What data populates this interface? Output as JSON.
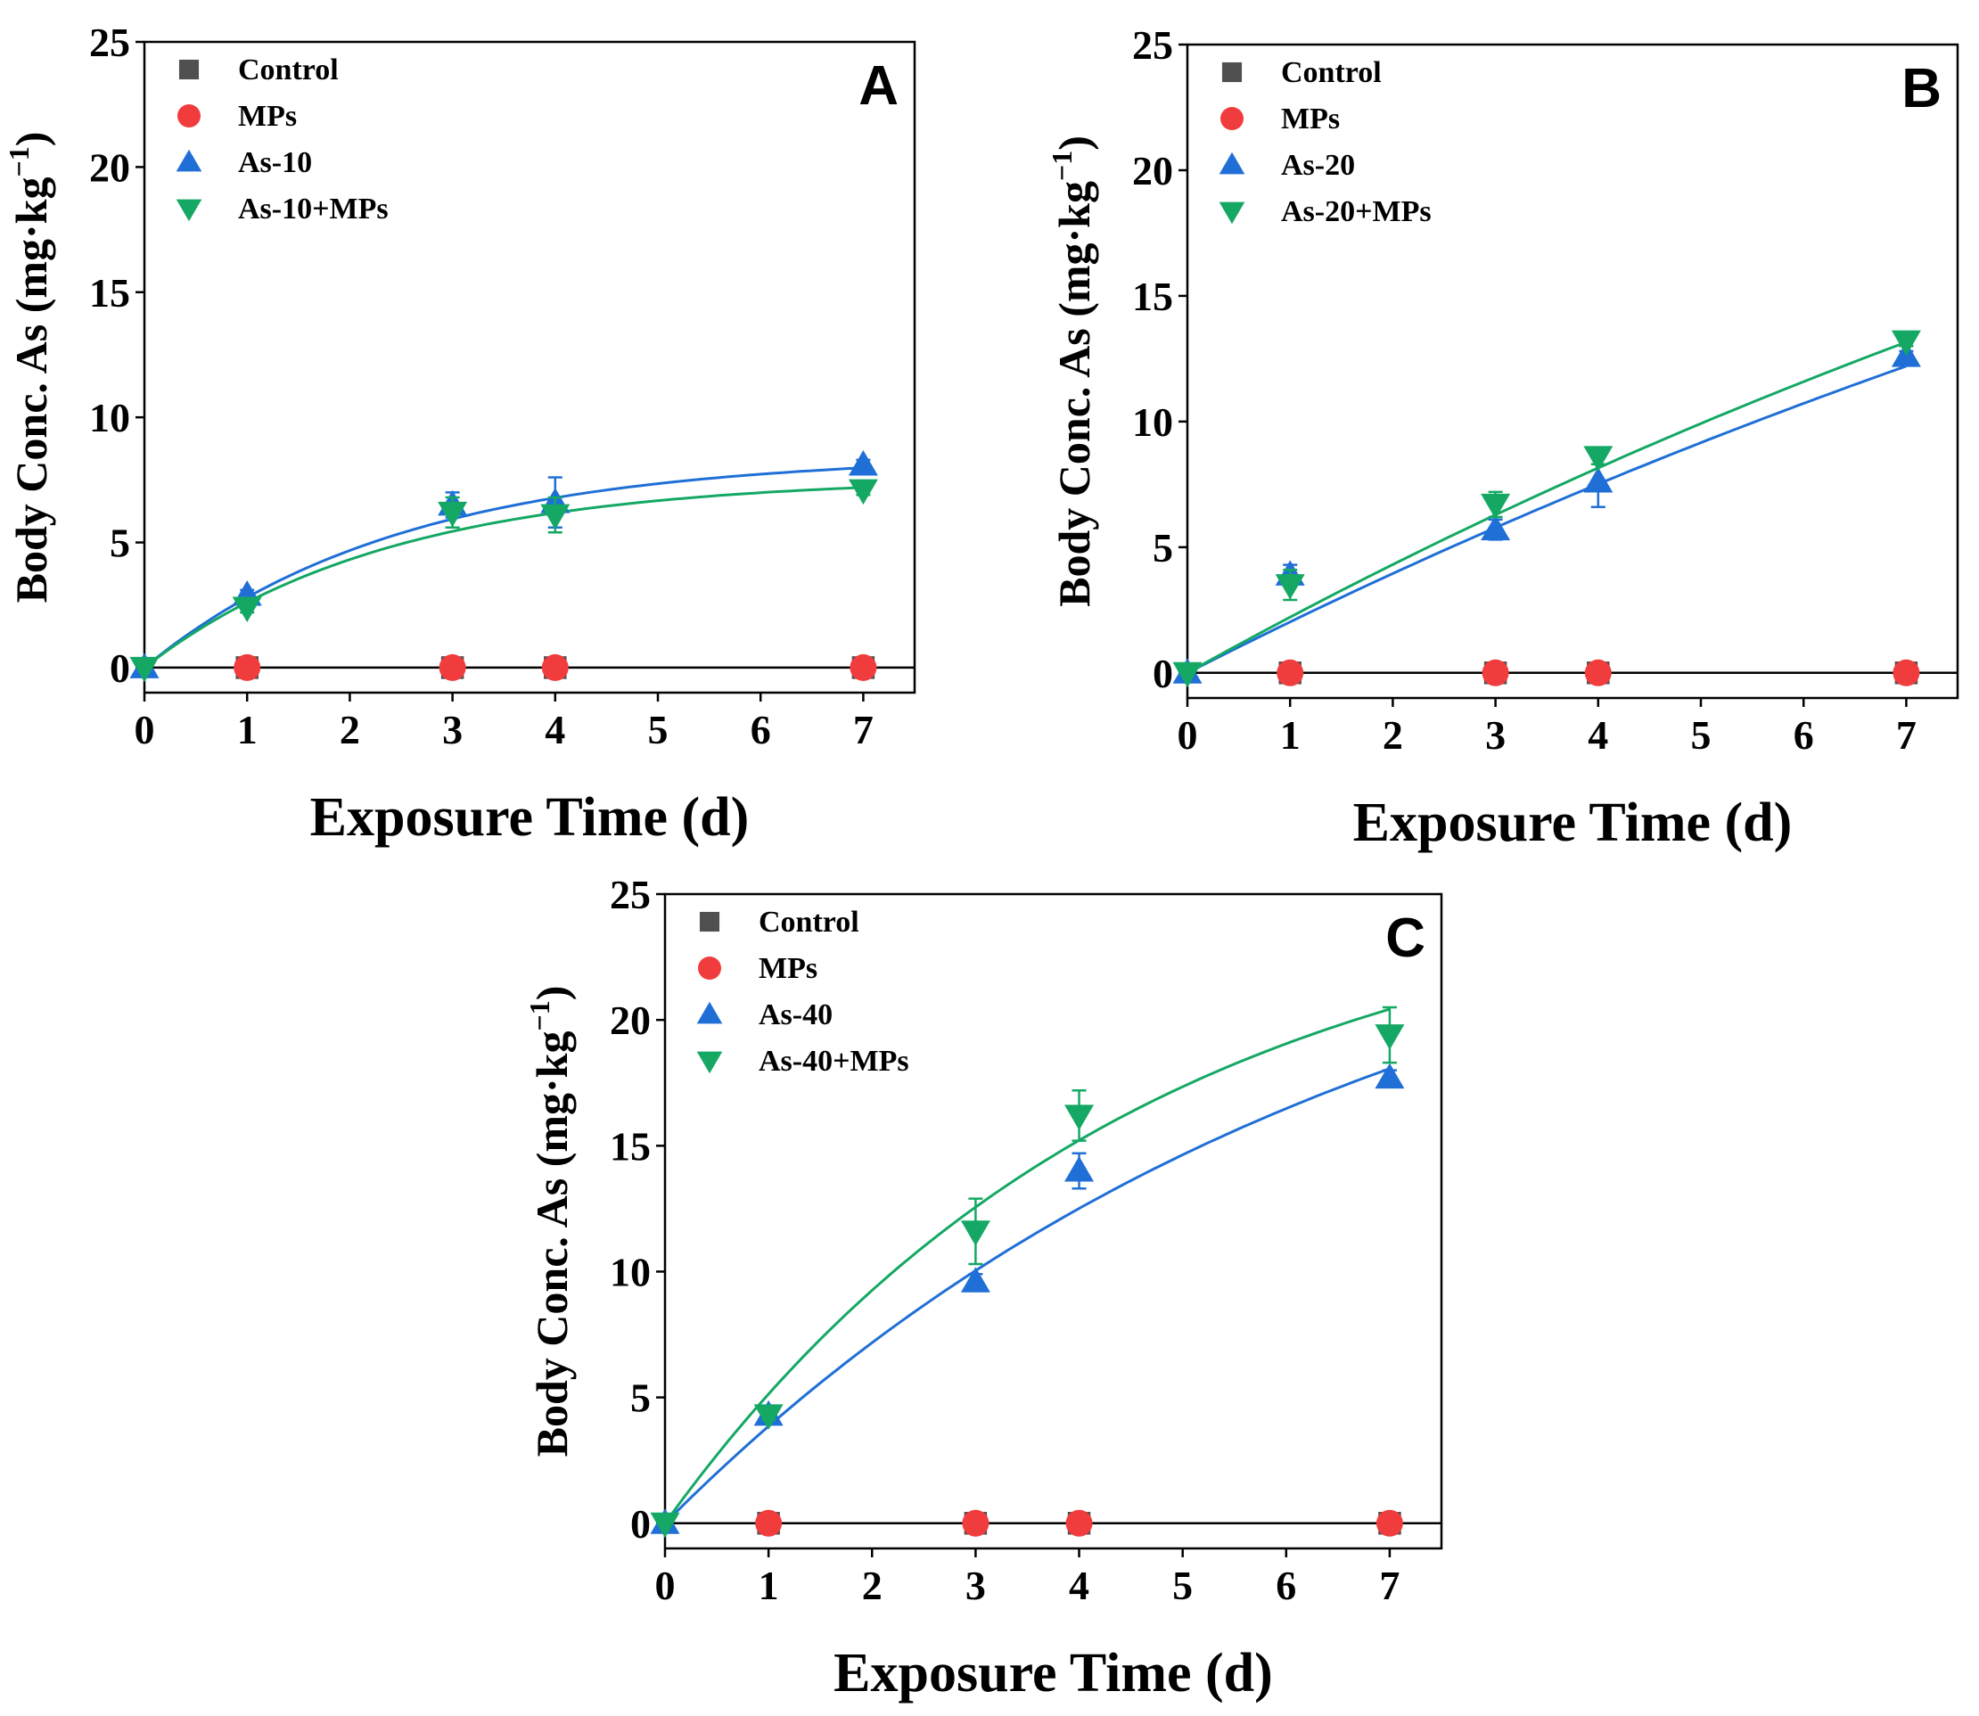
{
  "chart_data": [
    {
      "type": "scatter",
      "panel_label": "A",
      "xlabel": "Exposure Time (d)",
      "ylabel_main": "Body Conc. As (mg·kg",
      "ylabel_sup": "−1",
      "ylabel_close": ")",
      "xlim": [
        0,
        7.5
      ],
      "ylim": [
        -1,
        25
      ],
      "xticks": [
        "0",
        "1",
        "2",
        "3",
        "4",
        "5",
        "6",
        "7"
      ],
      "yticks": [
        "0",
        "5",
        "10",
        "15",
        "20",
        "25"
      ],
      "series": [
        {
          "name": "Control",
          "marker": "square",
          "color": "#505050",
          "x": [
            1,
            3,
            4,
            7
          ],
          "y": [
            0,
            0,
            0,
            0
          ]
        },
        {
          "name": "MPs",
          "marker": "circle",
          "color": "#f03c3c",
          "x": [
            1,
            3,
            4,
            7
          ],
          "y": [
            0,
            0,
            0,
            0
          ]
        },
        {
          "name": "As-10",
          "marker": "triangle-up",
          "color": "#1f6fd6",
          "x": [
            0,
            1,
            3,
            4,
            7
          ],
          "y": [
            0,
            2.9,
            6.5,
            6.6,
            8.1
          ],
          "err": [
            0,
            0.2,
            0.5,
            1.0,
            0.2
          ],
          "fit": {
            "a": 8.5,
            "k": 0.4
          }
        },
        {
          "name": "As-10+MPs",
          "marker": "triangle-down",
          "color": "#14a864",
          "x": [
            0,
            1,
            3,
            4,
            7
          ],
          "y": [
            0,
            2.4,
            6.2,
            6.1,
            7.1
          ],
          "err": [
            0,
            0.2,
            0.6,
            0.7,
            0.2
          ],
          "fit": {
            "a": 7.6,
            "k": 0.42
          }
        }
      ]
    },
    {
      "type": "scatter",
      "panel_label": "B",
      "xlabel": "Exposure Time (d)",
      "ylabel_main": "Body Conc. As (mg·kg",
      "ylabel_sup": "−1",
      "ylabel_close": ")",
      "xlim": [
        0,
        7.5
      ],
      "ylim": [
        -1,
        25
      ],
      "xticks": [
        "0",
        "1",
        "2",
        "3",
        "4",
        "5",
        "6",
        "7"
      ],
      "yticks": [
        "0",
        "5",
        "10",
        "15",
        "20",
        "25"
      ],
      "series": [
        {
          "name": "Control",
          "marker": "square",
          "color": "#505050",
          "x": [
            1,
            3,
            4,
            7
          ],
          "y": [
            0,
            0,
            0,
            0
          ]
        },
        {
          "name": "MPs",
          "marker": "circle",
          "color": "#f03c3c",
          "x": [
            1,
            3,
            4,
            7
          ],
          "y": [
            0,
            0,
            0,
            0
          ]
        },
        {
          "name": "As-20",
          "marker": "triangle-up",
          "color": "#1f6fd6",
          "x": [
            0,
            1,
            3,
            4,
            7
          ],
          "y": [
            0,
            3.9,
            5.7,
            7.6,
            12.6
          ],
          "err": [
            0,
            0.4,
            0.4,
            1.0,
            0.2
          ],
          "fit": {
            "a": 40,
            "k": 0.052
          }
        },
        {
          "name": "As-20+MPs",
          "marker": "triangle-down",
          "color": "#14a864",
          "x": [
            0,
            1,
            3,
            4,
            7
          ],
          "y": [
            0,
            3.5,
            6.7,
            8.6,
            13.2
          ],
          "err": [
            0,
            0.6,
            0.5,
            0.3,
            0.2
          ],
          "fit": {
            "a": 40,
            "k": 0.057
          }
        }
      ]
    },
    {
      "type": "scatter",
      "panel_label": "C",
      "xlabel": "Exposure Time (d)",
      "ylabel_main": "Body Conc. As (mg·kg",
      "ylabel_sup": "−1",
      "ylabel_close": ")",
      "xlim": [
        0,
        7.5
      ],
      "ylim": [
        -1,
        25
      ],
      "xticks": [
        "0",
        "1",
        "2",
        "3",
        "4",
        "5",
        "6",
        "7"
      ],
      "yticks": [
        "0",
        "5",
        "10",
        "15",
        "20",
        "25"
      ],
      "series": [
        {
          "name": "Control",
          "marker": "square",
          "color": "#505050",
          "x": [
            1,
            3,
            4,
            7
          ],
          "y": [
            0,
            0,
            0,
            0
          ]
        },
        {
          "name": "MPs",
          "marker": "circle",
          "color": "#f03c3c",
          "x": [
            1,
            3,
            4,
            7
          ],
          "y": [
            0,
            0,
            0,
            0
          ]
        },
        {
          "name": "As-40",
          "marker": "triangle-up",
          "color": "#1f6fd6",
          "x": [
            0,
            1,
            3,
            4,
            7
          ],
          "y": [
            0,
            4.3,
            9.6,
            14.0,
            17.7
          ],
          "err": [
            0,
            0.2,
            0.3,
            0.7,
            0.3
          ],
          "fit": {
            "a": 28,
            "k": 0.148
          }
        },
        {
          "name": "As-40+MPs",
          "marker": "triangle-down",
          "color": "#14a864",
          "x": [
            0,
            1,
            3,
            4,
            7
          ],
          "y": [
            0,
            4.3,
            11.6,
            16.2,
            19.4
          ],
          "err": [
            0,
            0.2,
            1.3,
            1.0,
            1.1
          ],
          "fit": {
            "a": 26,
            "k": 0.22
          }
        }
      ]
    }
  ]
}
